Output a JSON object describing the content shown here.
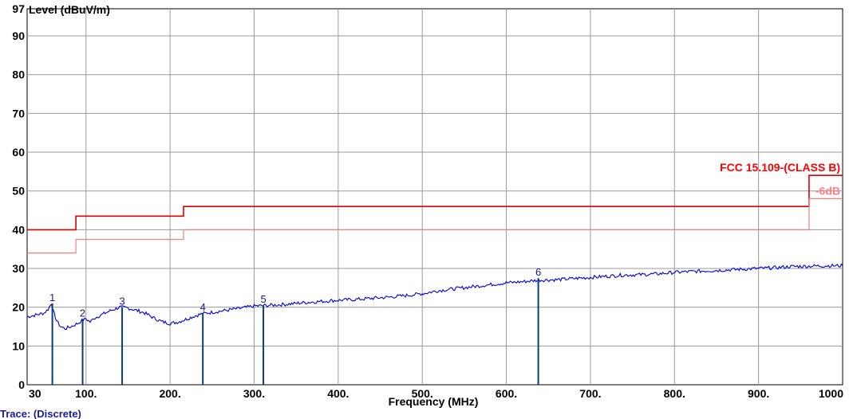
{
  "chart_data": {
    "type": "line",
    "ylabel": "Level (dBuV/m)",
    "xlabel": "Frequency (MHz)",
    "trace_note": "Trace:  (Discrete)",
    "xlim": [
      30,
      1000
    ],
    "ylim": [
      0,
      97
    ],
    "x_ticks": [
      {
        "value": 30,
        "label": "30"
      },
      {
        "value": 100,
        "label": "100."
      },
      {
        "value": 200,
        "label": "200."
      },
      {
        "value": 300,
        "label": "300."
      },
      {
        "value": 400,
        "label": "400."
      },
      {
        "value": 500,
        "label": "500."
      },
      {
        "value": 600,
        "label": "600."
      },
      {
        "value": 700,
        "label": "700."
      },
      {
        "value": 800,
        "label": "800."
      },
      {
        "value": 900,
        "label": "900."
      },
      {
        "value": 1000,
        "label": "1000"
      }
    ],
    "y_ticks": [
      {
        "value": 0,
        "label": "0"
      },
      {
        "value": 10,
        "label": "10"
      },
      {
        "value": 20,
        "label": "20"
      },
      {
        "value": 30,
        "label": "30"
      },
      {
        "value": 40,
        "label": "40"
      },
      {
        "value": 50,
        "label": "50"
      },
      {
        "value": 60,
        "label": "60"
      },
      {
        "value": 70,
        "label": "70"
      },
      {
        "value": 80,
        "label": "80"
      },
      {
        "value": 90,
        "label": "90"
      },
      {
        "value": 97,
        "label": "97"
      }
    ],
    "grid": true,
    "limit_line": {
      "name": "FCC 15.109-(CLASS B)",
      "color": "#e00000",
      "points": [
        [
          30,
          40
        ],
        [
          88,
          40
        ],
        [
          88,
          43.5
        ],
        [
          216,
          43.5
        ],
        [
          216,
          46
        ],
        [
          960,
          46
        ],
        [
          960,
          54
        ],
        [
          1000,
          54
        ]
      ]
    },
    "margin_line": {
      "name": "-6dB",
      "color": "#f08080",
      "points": [
        [
          30,
          34
        ],
        [
          88,
          34
        ],
        [
          88,
          37.5
        ],
        [
          216,
          37.5
        ],
        [
          216,
          40
        ],
        [
          960,
          40
        ],
        [
          960,
          48
        ],
        [
          1000,
          48
        ]
      ]
    },
    "trace": {
      "color": "#0000dd",
      "points": [
        [
          30,
          17.5
        ],
        [
          40,
          18
        ],
        [
          50,
          18.5
        ],
        [
          55,
          19.5
        ],
        [
          59,
          21
        ],
        [
          61,
          19
        ],
        [
          65,
          16.5
        ],
        [
          70,
          15
        ],
        [
          75,
          14.5
        ],
        [
          80,
          14.8
        ],
        [
          85,
          15.3
        ],
        [
          90,
          15.8
        ],
        [
          95,
          16.5
        ],
        [
          100,
          17
        ],
        [
          105,
          16.2
        ],
        [
          110,
          17.2
        ],
        [
          120,
          18.2
        ],
        [
          130,
          19.2
        ],
        [
          140,
          20
        ],
        [
          150,
          19.8
        ],
        [
          160,
          19.2
        ],
        [
          170,
          18.5
        ],
        [
          180,
          17.3
        ],
        [
          190,
          16.3
        ],
        [
          200,
          15.8
        ],
        [
          210,
          16.2
        ],
        [
          220,
          17
        ],
        [
          230,
          17.8
        ],
        [
          240,
          18.4
        ],
        [
          260,
          19
        ],
        [
          280,
          19.6
        ],
        [
          300,
          20.3
        ],
        [
          320,
          20.5
        ],
        [
          340,
          20.8
        ],
        [
          360,
          21.2
        ],
        [
          380,
          21.5
        ],
        [
          400,
          21.8
        ],
        [
          420,
          22
        ],
        [
          440,
          22.3
        ],
        [
          460,
          22.6
        ],
        [
          480,
          23
        ],
        [
          500,
          23.5
        ],
        [
          520,
          24.3
        ],
        [
          540,
          24.8
        ],
        [
          560,
          25.3
        ],
        [
          580,
          25.8
        ],
        [
          600,
          26.3
        ],
        [
          620,
          26.6
        ],
        [
          640,
          27
        ],
        [
          660,
          27.1
        ],
        [
          680,
          27.4
        ],
        [
          700,
          27.7
        ],
        [
          720,
          28
        ],
        [
          740,
          28.3
        ],
        [
          760,
          28.4
        ],
        [
          780,
          28.6
        ],
        [
          800,
          29
        ],
        [
          820,
          29.2
        ],
        [
          840,
          29.4
        ],
        [
          860,
          29.6
        ],
        [
          880,
          29.8
        ],
        [
          900,
          30
        ],
        [
          920,
          30.2
        ],
        [
          940,
          30.5
        ],
        [
          960,
          30.6
        ],
        [
          980,
          30.7
        ],
        [
          1000,
          30.7
        ]
      ]
    },
    "markers": [
      {
        "label": "1",
        "freq": 60,
        "level": 21
      },
      {
        "label": "2",
        "freq": 96,
        "level": 17
      },
      {
        "label": "3",
        "freq": 143,
        "level": 20
      },
      {
        "label": "4",
        "freq": 239,
        "level": 18.5
      },
      {
        "label": "5",
        "freq": 311,
        "level": 20.5
      },
      {
        "label": "6",
        "freq": 638,
        "level": 27.5
      }
    ]
  }
}
